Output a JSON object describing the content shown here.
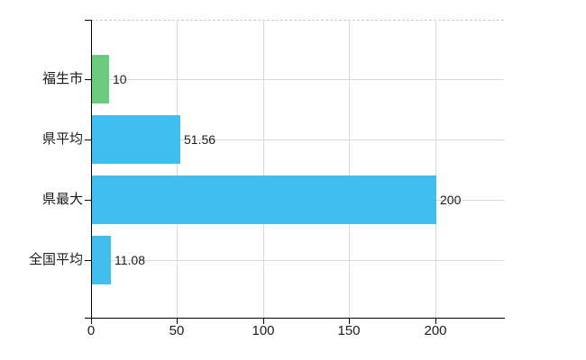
{
  "chart_data": {
    "type": "bar",
    "orientation": "horizontal",
    "title": "",
    "categories": [
      "福生市",
      "県平均",
      "県最大",
      "全国平均"
    ],
    "values": [
      10,
      51.56,
      200,
      11.08
    ],
    "value_labels": [
      "10",
      "51.56",
      "200",
      "11.08"
    ],
    "bar_colors": [
      "#6dcb7d",
      "#41bef0",
      "#41bef0",
      "#41bef0"
    ],
    "x_ticks": [
      0,
      50,
      100,
      150,
      200
    ],
    "x_tick_labels": [
      "0",
      "50",
      "100",
      "150",
      "200"
    ],
    "xlim": [
      0,
      240
    ],
    "grid": true,
    "legend": "none",
    "colors": {
      "axis": "#000000",
      "grid": "#d8d8d8",
      "top_border": "#c9c9c9",
      "text": "#1c1c1c",
      "background": "#ffffff"
    }
  }
}
